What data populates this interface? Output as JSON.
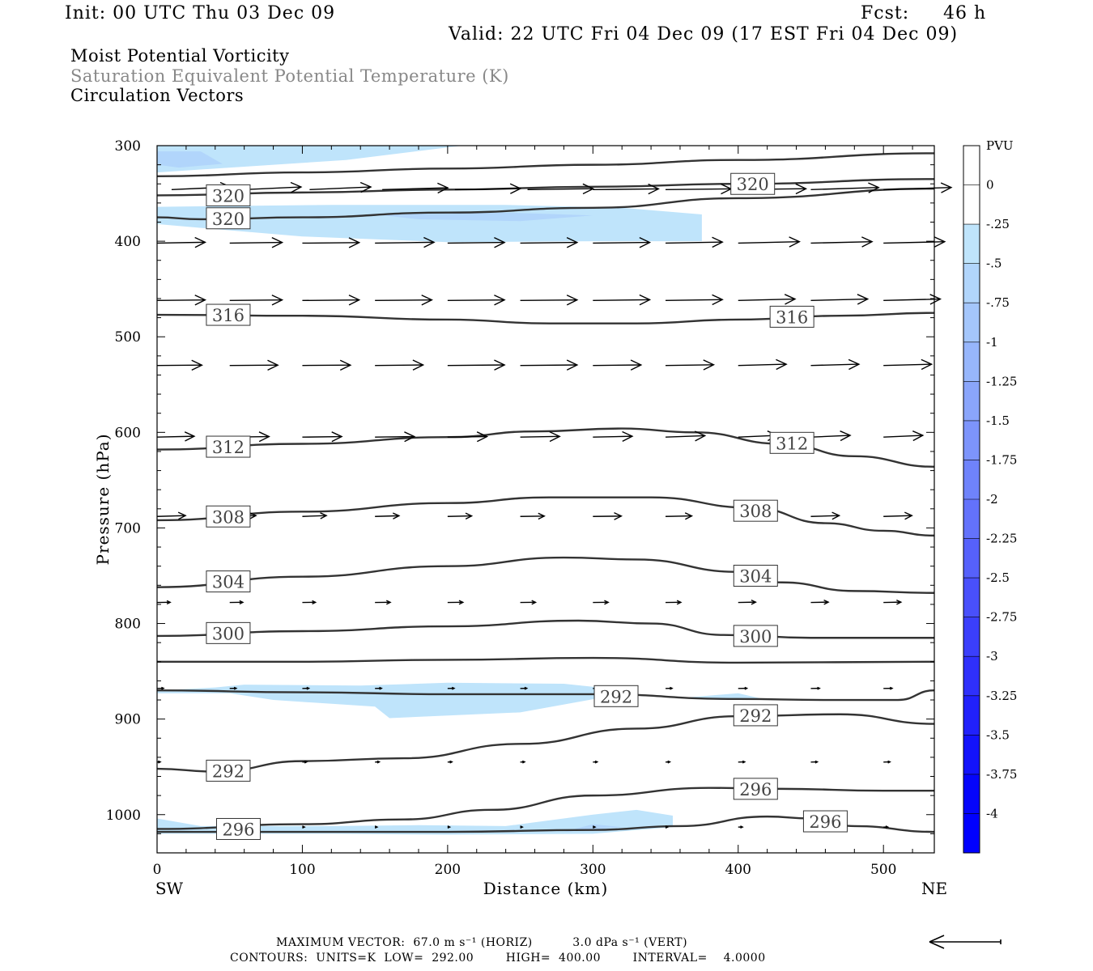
{
  "header": {
    "init": "Init: 00 UTC Thu 03 Dec 09",
    "fcst_label": "Fcst:",
    "fcst_value": "46 h",
    "valid": "Valid: 22 UTC Fri 04 Dec 09 (17 EST Fri 04 Dec 09)"
  },
  "fields": [
    "Moist Potential Vorticity",
    "Saturation Equivalent Potential Temperature (K)",
    "Circulation Vectors"
  ],
  "footer": {
    "max_vector": "MAXIMUM VECTOR:  67.0 m s⁻¹ (HORIZ)          3.0 dPa s⁻¹ (VERT)",
    "contours": "CONTOURS:  UNITS=K  LOW=  292.00        HIGH=  400.00        INTERVAL=    4.0000"
  },
  "chart_data": {
    "type": "contour",
    "xlabel": "Distance (km)",
    "ylabel": "Pressure (hPa)",
    "xlim": [
      0,
      535
    ],
    "ylim": [
      1040,
      300
    ],
    "x_ticks": [
      "0",
      "100",
      "200",
      "300",
      "400",
      "500"
    ],
    "y_ticks": [
      "300",
      "400",
      "500",
      "600",
      "700",
      "800",
      "900",
      "1000"
    ],
    "x_end_labels": {
      "left": "SW",
      "right": "NE"
    },
    "colorbar": {
      "unit": "PVU",
      "ticks": [
        "0",
        "-.25",
        "-.5",
        "-.75",
        "-1",
        "-1.25",
        "-1.5",
        "-1.75",
        "-2",
        "-2.25",
        "-2.5",
        "-2.75",
        "-3",
        "-3.25",
        "-3.5",
        "-3.75",
        "-4"
      ],
      "colors": [
        "#ffffff",
        "#ffffff",
        "#bfe4fb",
        "#b1d5fb",
        "#a4c6fb",
        "#97b6fb",
        "#8aa5fb",
        "#7d94fb",
        "#6f83fb",
        "#6372fb",
        "#5661fb",
        "#4950fb",
        "#3b3ffb",
        "#2f30fb",
        "#2121fb",
        "#1313fb",
        "#0505fb",
        "#0000ff"
      ]
    },
    "contour_lines": [
      {
        "label": "",
        "points": [
          [
            0,
            332
          ],
          [
            100,
            328
          ],
          [
            200,
            324
          ],
          [
            300,
            320
          ],
          [
            400,
            315
          ],
          [
            535,
            308
          ]
        ]
      },
      {
        "label": "320",
        "points": [
          [
            0,
            352
          ],
          [
            100,
            349
          ],
          [
            200,
            346
          ],
          [
            300,
            343
          ],
          [
            400,
            340
          ],
          [
            535,
            335
          ]
        ]
      },
      {
        "label": "320",
        "points": [
          [
            0,
            375
          ],
          [
            30,
            377
          ],
          [
            100,
            375
          ],
          [
            200,
            370
          ],
          [
            300,
            365
          ],
          [
            400,
            355
          ],
          [
            535,
            345
          ]
        ]
      },
      {
        "label": "316",
        "points": [
          [
            0,
            477
          ],
          [
            100,
            478
          ],
          [
            200,
            482
          ],
          [
            270,
            486
          ],
          [
            330,
            486
          ],
          [
            400,
            482
          ],
          [
            470,
            478
          ],
          [
            535,
            475
          ]
        ]
      },
      {
        "label": "312",
        "points": [
          [
            0,
            618
          ],
          [
            100,
            612
          ],
          [
            200,
            605
          ],
          [
            260,
            599
          ],
          [
            320,
            596
          ],
          [
            370,
            600
          ],
          [
            430,
            612
          ],
          [
            480,
            625
          ],
          [
            535,
            636
          ]
        ]
      },
      {
        "label": "308",
        "points": [
          [
            0,
            692
          ],
          [
            100,
            683
          ],
          [
            200,
            674
          ],
          [
            270,
            668
          ],
          [
            340,
            668
          ],
          [
            410,
            679
          ],
          [
            460,
            695
          ],
          [
            500,
            703
          ],
          [
            535,
            708
          ]
        ]
      },
      {
        "label": "304",
        "points": [
          [
            0,
            762
          ],
          [
            100,
            751
          ],
          [
            200,
            740
          ],
          [
            280,
            731
          ],
          [
            330,
            733
          ],
          [
            400,
            746
          ],
          [
            430,
            757
          ],
          [
            480,
            766
          ],
          [
            535,
            768
          ]
        ]
      },
      {
        "label": "300",
        "points": [
          [
            0,
            813
          ],
          [
            100,
            808
          ],
          [
            200,
            803
          ],
          [
            290,
            797
          ],
          [
            340,
            800
          ],
          [
            390,
            812
          ],
          [
            450,
            815
          ],
          [
            535,
            815
          ]
        ]
      },
      {
        "label": "",
        "points": [
          [
            0,
            840
          ],
          [
            100,
            840
          ],
          [
            200,
            838
          ],
          [
            300,
            836
          ],
          [
            400,
            841
          ],
          [
            535,
            840
          ]
        ]
      },
      {
        "label": "292",
        "points": [
          [
            0,
            870
          ],
          [
            100,
            872
          ],
          [
            200,
            874
          ],
          [
            300,
            874
          ],
          [
            400,
            879
          ],
          [
            460,
            880
          ],
          [
            510,
            880
          ],
          [
            535,
            870
          ]
        ]
      },
      {
        "label": "292",
        "points": [
          [
            0,
            952
          ],
          [
            40,
            955
          ],
          [
            100,
            944
          ],
          [
            170,
            941
          ],
          [
            250,
            926
          ],
          [
            330,
            910
          ],
          [
            400,
            897
          ],
          [
            470,
            895
          ],
          [
            535,
            905
          ]
        ]
      },
      {
        "label": "296",
        "points": [
          [
            0,
            1015
          ],
          [
            100,
            1010
          ],
          [
            170,
            1005
          ],
          [
            230,
            995
          ],
          [
            300,
            980
          ],
          [
            380,
            972
          ],
          [
            430,
            973
          ],
          [
            500,
            975
          ],
          [
            535,
            975
          ]
        ]
      },
      {
        "label": "296",
        "points": [
          [
            0,
            1018
          ],
          [
            100,
            1018
          ],
          [
            200,
            1018
          ],
          [
            300,
            1016
          ],
          [
            360,
            1012
          ],
          [
            420,
            1002
          ],
          [
            450,
            1004
          ],
          [
            480,
            1012
          ],
          [
            535,
            1018
          ]
        ]
      }
    ],
    "pv_shading": [
      {
        "level": -0.25,
        "points": [
          [
            0,
            300
          ],
          [
            210,
            300
          ],
          [
            130,
            315
          ],
          [
            30,
            325
          ],
          [
            0,
            328
          ]
        ]
      },
      {
        "level": -0.5,
        "points": [
          [
            0,
            306
          ],
          [
            30,
            306
          ],
          [
            45,
            319
          ],
          [
            15,
            323
          ],
          [
            0,
            320
          ]
        ]
      },
      {
        "level": -0.25,
        "points": [
          [
            0,
            364
          ],
          [
            120,
            362
          ],
          [
            240,
            362
          ],
          [
            320,
            365
          ],
          [
            375,
            372
          ],
          [
            375,
            400
          ],
          [
            300,
            400
          ],
          [
            200,
            401
          ],
          [
            100,
            395
          ],
          [
            30,
            386
          ],
          [
            0,
            382
          ]
        ]
      },
      {
        "level": -0.5,
        "points": [
          [
            150,
            372
          ],
          [
            240,
            370
          ],
          [
            300,
            373
          ],
          [
            250,
            379
          ],
          [
            180,
            377
          ]
        ]
      },
      {
        "level": -0.25,
        "points": [
          [
            0,
            870
          ],
          [
            40,
            867
          ],
          [
            60,
            864
          ],
          [
            140,
            865
          ],
          [
            200,
            862
          ],
          [
            280,
            863
          ],
          [
            330,
            871
          ],
          [
            250,
            893
          ],
          [
            160,
            899
          ],
          [
            150,
            887
          ],
          [
            80,
            880
          ],
          [
            50,
            873
          ],
          [
            0,
            873
          ]
        ]
      },
      {
        "level": -0.25,
        "points": [
          [
            360,
            878
          ],
          [
            400,
            873
          ],
          [
            420,
            880
          ],
          [
            390,
            880
          ]
        ]
      },
      {
        "level": -0.25,
        "points": [
          [
            0,
            1004
          ],
          [
            30,
            1012
          ],
          [
            120,
            1012
          ],
          [
            180,
            1011
          ],
          [
            240,
            1012
          ],
          [
            300,
            1000
          ],
          [
            330,
            995
          ],
          [
            355,
            1001
          ],
          [
            355,
            1013
          ],
          [
            300,
            1020
          ],
          [
            200,
            1021
          ],
          [
            120,
            1020
          ],
          [
            0,
            1020
          ]
        ]
      },
      {
        "level": -0.5,
        "points": [
          [
            300,
            1010
          ],
          [
            320,
            1013
          ],
          [
            280,
            1018
          ]
        ]
      }
    ],
    "vectors": [
      {
        "p": 346,
        "x": [
          10,
          60,
          105,
          155,
          205,
          255,
          300,
          350,
          400,
          450,
          500
        ],
        "u": [
          54,
          52,
          56,
          60,
          60,
          60,
          60,
          60,
          62,
          62,
          62
        ],
        "w": [
          1.5,
          1.5,
          1.5,
          1.0,
          0.6,
          0.5,
          0.4,
          0.4,
          0.5,
          1.2,
          1.2
        ]
      },
      {
        "p": 402,
        "x": [
          0,
          50,
          100,
          150,
          200,
          250,
          300,
          350,
          400,
          450,
          500
        ],
        "u": [
          44,
          48,
          52,
          54,
          52,
          52,
          52,
          52,
          56,
          56,
          56
        ],
        "w": [
          0.5,
          0.4,
          0.3,
          0.5,
          0.4,
          0.4,
          0.4,
          0.6,
          0.8,
          0.8,
          0.8
        ]
      },
      {
        "p": 462,
        "x": [
          0,
          50,
          100,
          150,
          200,
          250,
          300,
          350,
          400,
          450,
          500
        ],
        "u": [
          44,
          48,
          52,
          52,
          52,
          52,
          52,
          52,
          52,
          52,
          52
        ],
        "w": [
          0.3,
          0.3,
          0.3,
          0.3,
          0.3,
          0.3,
          0.4,
          0.5,
          0.8,
          0.8,
          0.8
        ]
      },
      {
        "p": 530,
        "x": [
          0,
          50,
          100,
          150,
          200,
          250,
          300,
          350,
          400,
          450,
          500
        ],
        "u": [
          41,
          44,
          44,
          44,
          52,
          52,
          44,
          44,
          44,
          44,
          44
        ],
        "w": [
          0.2,
          0.2,
          0.2,
          0.3,
          0.3,
          0.3,
          0.3,
          0.4,
          0.7,
          0.7,
          0.7
        ]
      },
      {
        "p": 605,
        "x": [
          0,
          50,
          100,
          150,
          200,
          250,
          300,
          350,
          400,
          450,
          500
        ],
        "u": [
          34,
          36,
          36,
          36,
          36,
          36,
          36,
          36,
          36,
          36,
          36
        ],
        "w": [
          0.5,
          0.3,
          0.3,
          0.3,
          0.3,
          0.4,
          0.5,
          0.8,
          1.0,
          1.0,
          1.0
        ]
      },
      {
        "p": 688,
        "x": [
          0,
          50,
          100,
          150,
          200,
          250,
          300,
          350,
          400,
          450,
          500
        ],
        "u": [
          26,
          24,
          22,
          22,
          22,
          22,
          26,
          24,
          26,
          26,
          26
        ],
        "w": [
          0.5,
          0.5,
          0.5,
          0.4,
          0.3,
          0.2,
          0.2,
          0.3,
          0.5,
          0.5,
          0.5
        ]
      },
      {
        "p": 778,
        "x": [
          0,
          50,
          100,
          150,
          200,
          250,
          300,
          350,
          400,
          450,
          500
        ],
        "u": [
          12,
          12,
          12,
          14,
          14,
          14,
          14,
          14,
          16,
          16,
          16
        ],
        "w": [
          0.1,
          0.1,
          0.1,
          0.1,
          0.1,
          0.1,
          0.1,
          0.1,
          0.2,
          0.2,
          0.2
        ]
      },
      {
        "p": 868,
        "x": [
          0,
          50,
          100,
          150,
          200,
          250,
          300,
          350,
          400,
          450,
          500
        ],
        "u": [
          6,
          6,
          6,
          6,
          6,
          6,
          6,
          6,
          8,
          8,
          8
        ],
        "w": [
          0.1,
          0.1,
          0.1,
          0.1,
          0.1,
          0.1,
          0.1,
          0.1,
          0.1,
          0.1,
          0.1
        ]
      },
      {
        "p": 945,
        "x": [
          0,
          50,
          100,
          150,
          200,
          250,
          300,
          350,
          400,
          450,
          500
        ],
        "u": [
          3,
          4,
          4,
          4,
          4,
          4,
          4,
          4,
          6,
          6,
          6
        ],
        "w": [
          0.1,
          0.1,
          0.1,
          0.1,
          0.1,
          0.1,
          0.1,
          0.1,
          0.1,
          0.1,
          0.1
        ]
      },
      {
        "p": 1013,
        "x": [
          100,
          150,
          200,
          250,
          300,
          350,
          400,
          450,
          500
        ],
        "u": [
          2,
          2,
          2,
          2,
          2,
          2,
          4,
          4,
          4
        ],
        "w": [
          0,
          0,
          0,
          0,
          0,
          0,
          0,
          0,
          0
        ]
      }
    ]
  }
}
